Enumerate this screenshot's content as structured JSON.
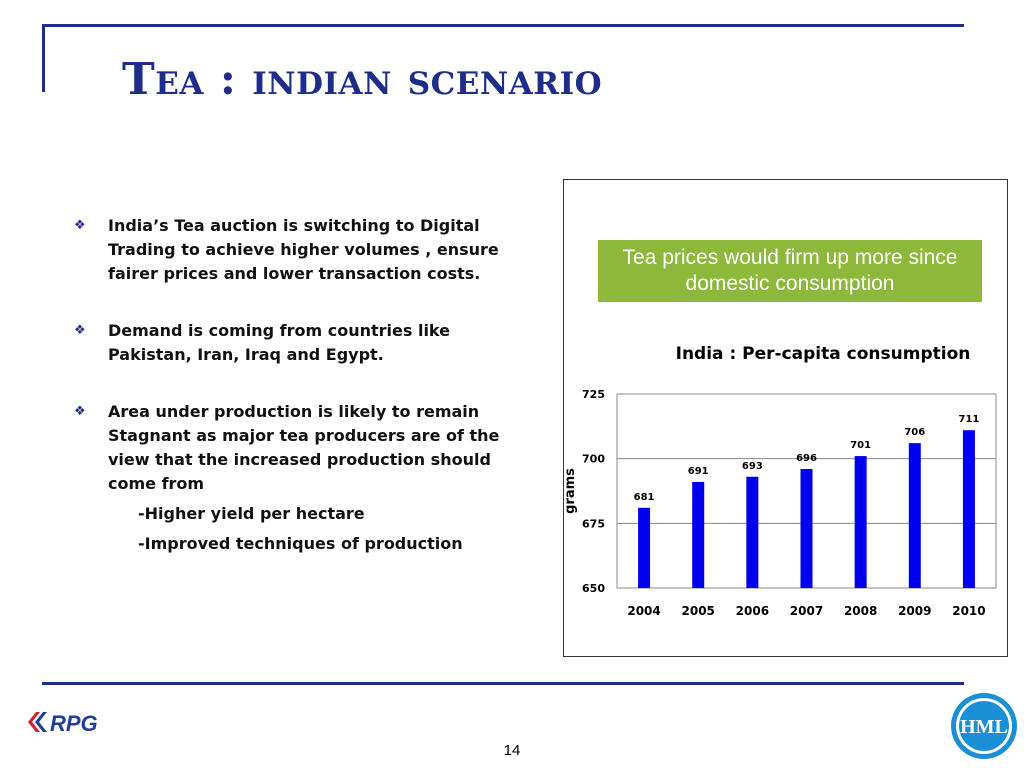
{
  "slide": {
    "title": "Tea : indian scenario",
    "page_number": "14",
    "logo_left_text": "RPG",
    "logo_right_text": "HML"
  },
  "bullets": [
    {
      "text": "India’s Tea auction is switching to Digital Trading to achieve higher volumes , ensure fairer prices and lower transaction costs."
    },
    {
      "text": "Demand is coming from countries like Pakistan, Iran, Iraq and Egypt."
    },
    {
      "text": "Area under production is likely to remain Stagnant as major tea producers are of the view that the increased production should come from"
    }
  ],
  "sub_points": [
    "-Higher yield per hectare",
    "-Improved techniques of production"
  ],
  "callout": {
    "text": "Tea prices would firm up more since domestic consumption"
  },
  "colors": {
    "accent": "#1f2d8a",
    "callout_bg": "#8db83a",
    "bar": "#0000ee"
  },
  "chart_data": {
    "type": "bar",
    "title": "India : Per-capita consumption",
    "ylabel": "grams",
    "xlabel": "",
    "categories": [
      "2004",
      "2005",
      "2006",
      "2007",
      "2008",
      "2009",
      "2010"
    ],
    "values": [
      681,
      691,
      693,
      696,
      701,
      706,
      711
    ],
    "ylim": [
      650,
      725
    ],
    "yticks": [
      650,
      675,
      700,
      725
    ],
    "grid": true,
    "data_labels": true
  }
}
